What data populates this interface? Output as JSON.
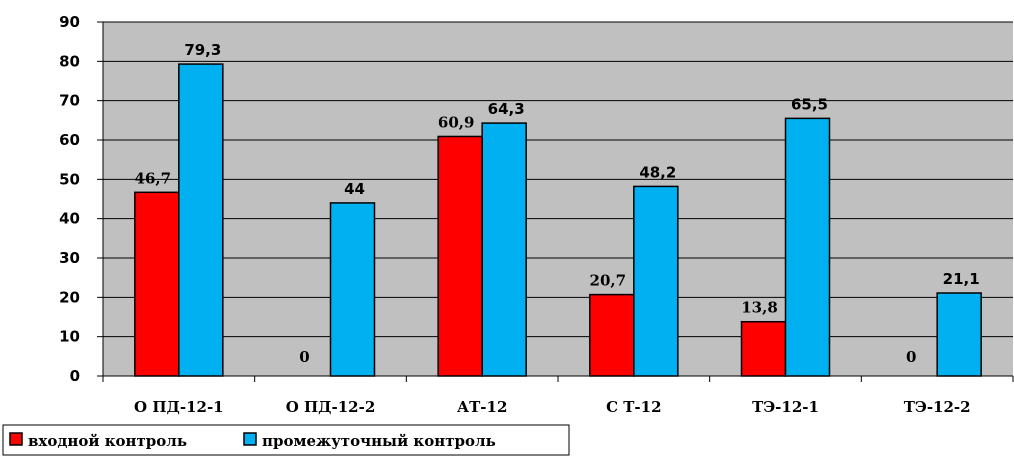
{
  "chart_data": {
    "type": "bar",
    "categories": [
      "О ПД-12-1",
      "О ПД-12-2",
      "АТ-12",
      "С Т-12",
      "ТЭ-12-1",
      "ТЭ-12-2"
    ],
    "series": [
      {
        "name": "входной контроль",
        "color": "#ff0000",
        "values": [
          46.7,
          0,
          60.9,
          20.7,
          13.8,
          0
        ],
        "labels": [
          "46,7",
          "0",
          "60,9",
          "20,7",
          "13,8",
          "0"
        ]
      },
      {
        "name": "промежуточный контроль",
        "color": "#00b0f0",
        "values": [
          79.3,
          44,
          64.3,
          48.2,
          65.5,
          21.1
        ],
        "labels": [
          "79,3",
          "44",
          "64,3",
          "48,2",
          "65,5",
          "21,1"
        ]
      }
    ],
    "ylim": [
      0,
      90
    ],
    "yticks": [
      0,
      10,
      20,
      30,
      40,
      50,
      60,
      70,
      80,
      90
    ],
    "grid": true,
    "plot_background": "#c0c0c0",
    "legend_position": "bottom-left"
  }
}
